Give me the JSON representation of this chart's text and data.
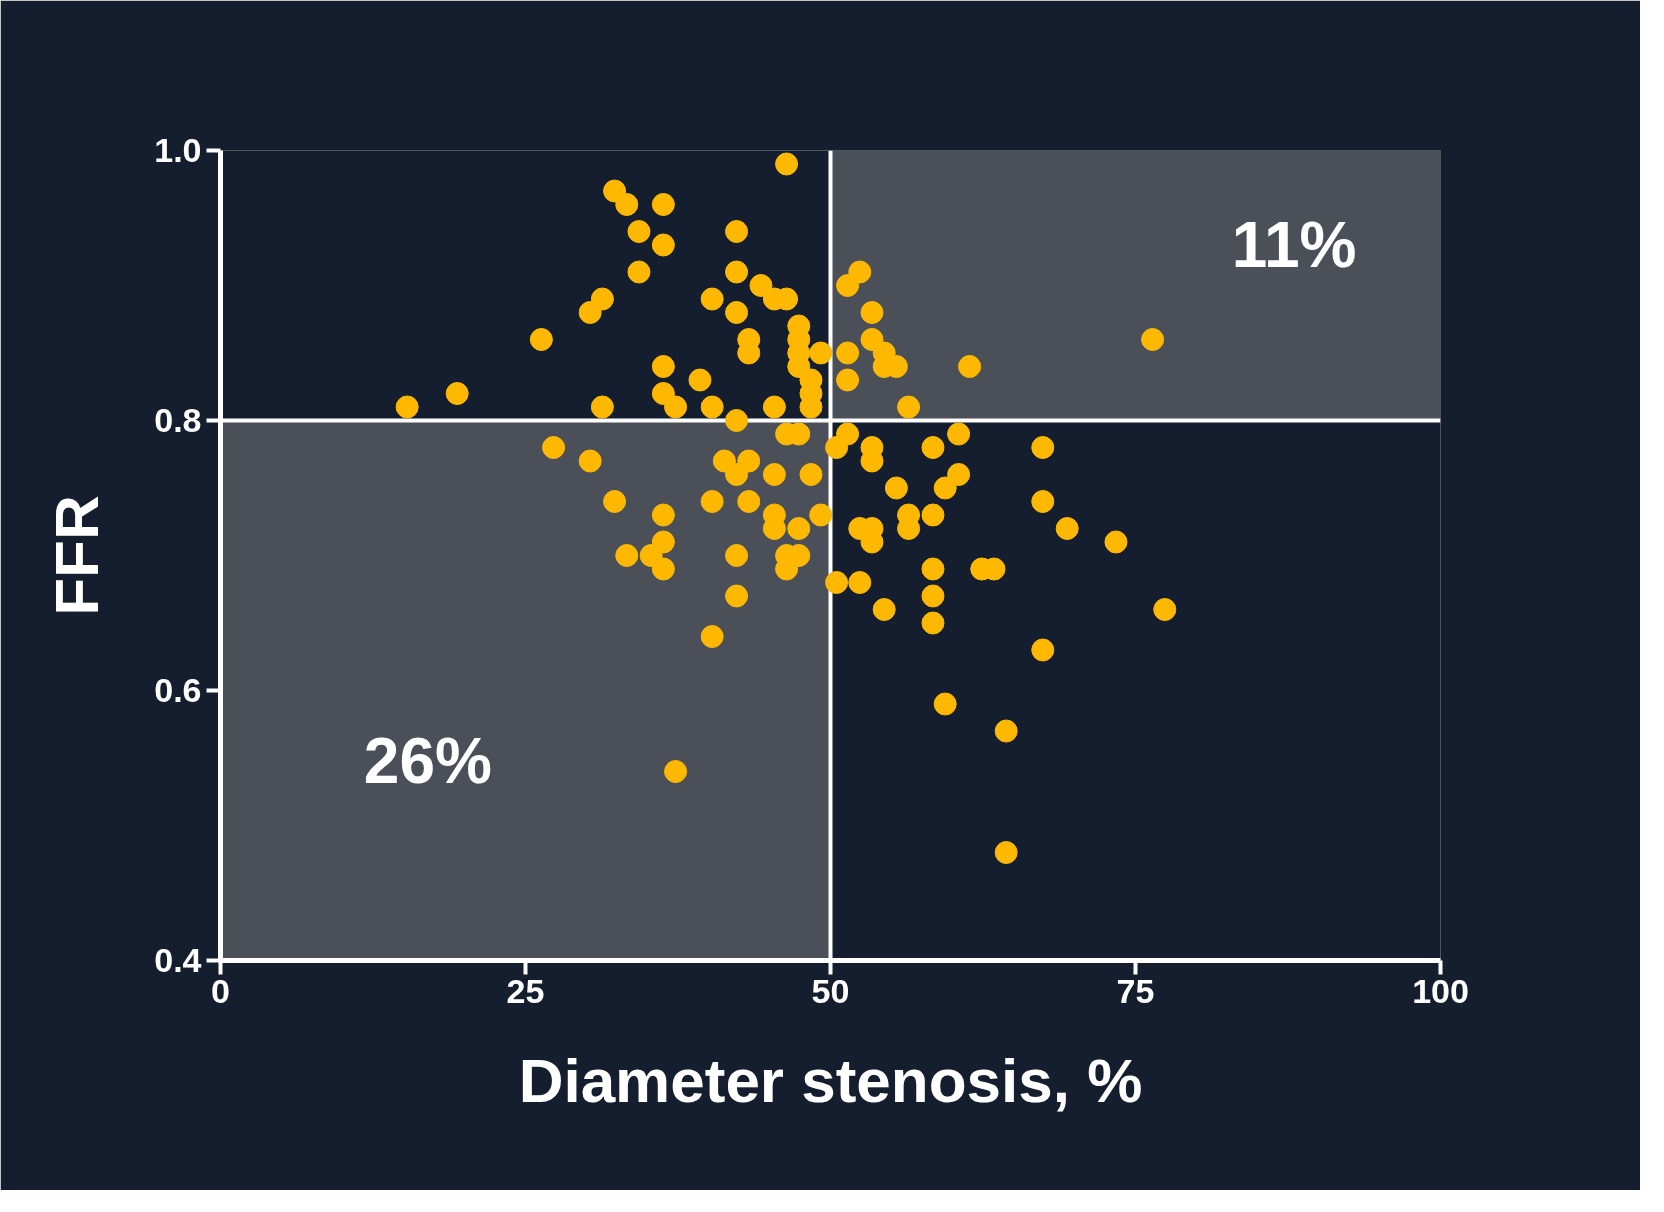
{
  "chart_data": {
    "type": "scatter",
    "xlabel": "Diameter stenosis, %",
    "ylabel": "FFR",
    "xlim": [
      0,
      100
    ],
    "ylim": [
      0.4,
      1.0
    ],
    "xticks": [
      0,
      25,
      50,
      75,
      100
    ],
    "yticks": [
      {
        "value": 0.4,
        "label": "0.4"
      },
      {
        "value": 0.6,
        "label": "0.6"
      },
      {
        "value": 0.8,
        "label": "0.8"
      },
      {
        "value": 1.0,
        "label": "1.0"
      }
    ],
    "grid": false,
    "marker": "circle",
    "x": [
      15.3,
      19.4,
      26.3,
      27.3,
      30.3,
      31.3,
      30.3,
      31.3,
      32.3,
      33.3,
      32.3,
      33.3,
      34.3,
      34.3,
      36.3,
      36.3,
      36.3,
      36.3,
      37.3,
      35.3,
      36.3,
      36.3,
      36.3,
      37.3,
      39.3,
      40.3,
      40.3,
      40.3,
      40.3,
      41.3,
      42.3,
      42.3,
      42.3,
      42.3,
      42.3,
      42.3,
      42.3,
      43.3,
      43.3,
      43.3,
      43.3,
      44.3,
      45.4,
      46.4,
      46.4,
      45.4,
      45.4,
      45.4,
      45.4,
      46.4,
      46.4,
      46.4,
      47.4,
      47.4,
      47.4,
      47.4,
      47.4,
      47.4,
      47.4,
      48.4,
      48.4,
      48.4,
      48.4,
      49.2,
      49.2,
      50.5,
      50.5,
      51.4,
      52.4,
      51.4,
      51.4,
      51.4,
      52.4,
      52.4,
      53.4,
      53.4,
      53.4,
      53.4,
      53.4,
      53.4,
      54.4,
      54.4,
      55.4,
      54.4,
      55.4,
      56.4,
      56.4,
      56.4,
      58.4,
      58.4,
      58.4,
      58.4,
      58.4,
      59.4,
      59.4,
      60.5,
      60.5,
      61.4,
      62.4,
      63.4,
      64.4,
      64.4,
      67.4,
      67.4,
      67.4,
      69.4,
      73.4,
      76.4,
      77.4
    ],
    "series": [
      {
        "type": "bar",
        "color": "#4a4f58",
        "x": [
          25,
          75
        ],
        "base": [
          0.4,
          0.8
        ],
        "values": [
          0.4,
          0.2
        ]
      },
      {
        "color": "#ffb800",
        "values": [
          0.81,
          0.82,
          0.86,
          0.78,
          0.88,
          0.89,
          0.77,
          0.81,
          0.97,
          0.96,
          0.74,
          0.7,
          0.94,
          0.91,
          0.96,
          0.93,
          0.84,
          0.82,
          0.81,
          0.7,
          0.71,
          0.73,
          0.69,
          0.54,
          0.83,
          0.89,
          0.81,
          0.74,
          0.64,
          0.77,
          0.94,
          0.91,
          0.88,
          0.8,
          0.76,
          0.7,
          0.67,
          0.86,
          0.85,
          0.77,
          0.74,
          0.9,
          0.89,
          0.89,
          0.99,
          0.81,
          0.76,
          0.73,
          0.72,
          0.79,
          0.7,
          0.69,
          0.87,
          0.86,
          0.85,
          0.84,
          0.79,
          0.72,
          0.7,
          0.83,
          0.82,
          0.81,
          0.76,
          0.85,
          0.73,
          0.78,
          0.68,
          0.9,
          0.91,
          0.85,
          0.83,
          0.79,
          0.72,
          0.68,
          0.88,
          0.86,
          0.78,
          0.77,
          0.72,
          0.71,
          0.85,
          0.84,
          0.84,
          0.66,
          0.75,
          0.81,
          0.73,
          0.72,
          0.78,
          0.73,
          0.69,
          0.67,
          0.65,
          0.75,
          0.59,
          0.76,
          0.79,
          0.84,
          0.69,
          0.69,
          0.57,
          0.48,
          0.78,
          0.74,
          0.63,
          0.72,
          0.71,
          0.86,
          0.66
        ]
      }
    ],
    "ref_lines": [
      {
        "axis": "x",
        "value": 50,
        "color": "#ffffff"
      },
      {
        "axis": "y",
        "value": 0.8,
        "color": "#ffffff"
      }
    ],
    "annotations": [
      "26%",
      "11%"
    ]
  }
}
